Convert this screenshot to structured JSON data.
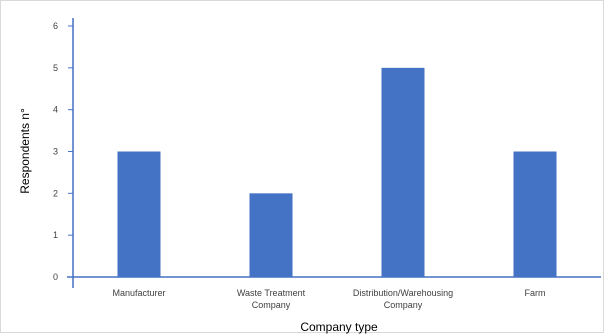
{
  "chart_data": {
    "type": "bar",
    "categories": [
      [
        "Manufacturer"
      ],
      [
        "Waste Treatment",
        "Company"
      ],
      [
        "Distribution/Warehousing",
        "Company"
      ],
      [
        "Farm"
      ]
    ],
    "values": [
      3,
      2,
      5,
      3
    ],
    "xlabel": "Company type",
    "ylabel": "Respondents n°",
    "ylim": [
      0,
      6
    ],
    "yticks": [
      0,
      1,
      2,
      3,
      4,
      5,
      6
    ],
    "bar_color": "#4472c4",
    "axis_color": "#4472c4",
    "grid": false
  }
}
